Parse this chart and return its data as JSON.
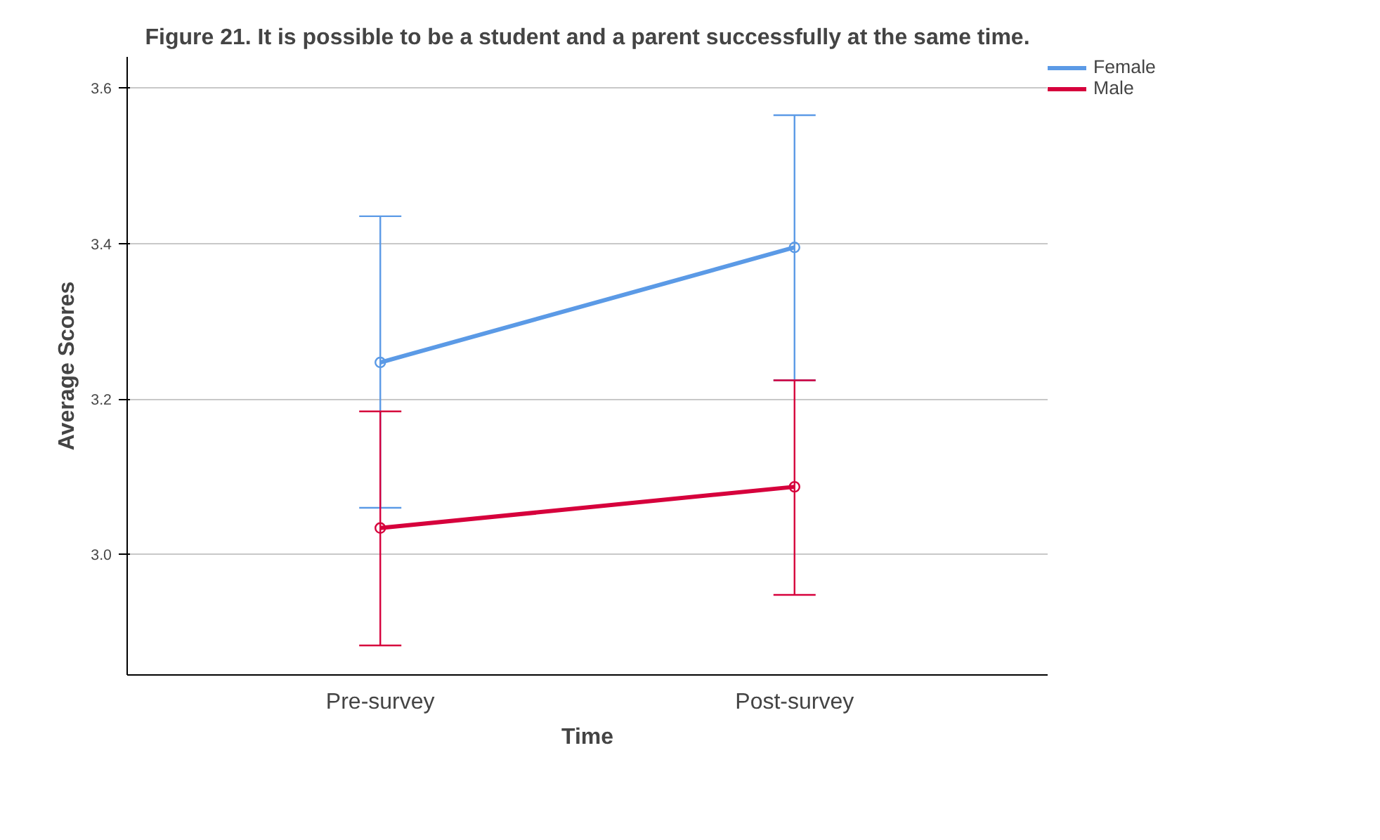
{
  "chart_data": {
    "type": "line",
    "title": "Figure 21. It is possible to be a student and a parent successfully at the same time.",
    "xlabel": "Time",
    "ylabel": "Average Scores",
    "categories": [
      "Pre-survey",
      "Post-survey"
    ],
    "series": [
      {
        "name": "Female",
        "color": "#5b9ae6",
        "values": [
          3.247,
          3.395
        ],
        "errors": [
          [
            3.06,
            3.435
          ],
          [
            3.224,
            3.565
          ]
        ]
      },
      {
        "name": "Male",
        "color": "#d6003c",
        "values": [
          3.034,
          3.087
        ],
        "errors": [
          [
            2.883,
            3.184
          ],
          [
            2.948,
            3.224
          ]
        ]
      }
    ],
    "ylim": [
      2.845,
      3.64
    ],
    "yticks": [
      {
        "value": 3.0,
        "label": "3.0"
      },
      {
        "value": 3.2,
        "label": "3.2"
      },
      {
        "value": 3.4,
        "label": "3.4"
      },
      {
        "value": 3.6,
        "label": "3.6"
      }
    ],
    "grid": "y",
    "legend": "top right",
    "marker": "circle"
  }
}
